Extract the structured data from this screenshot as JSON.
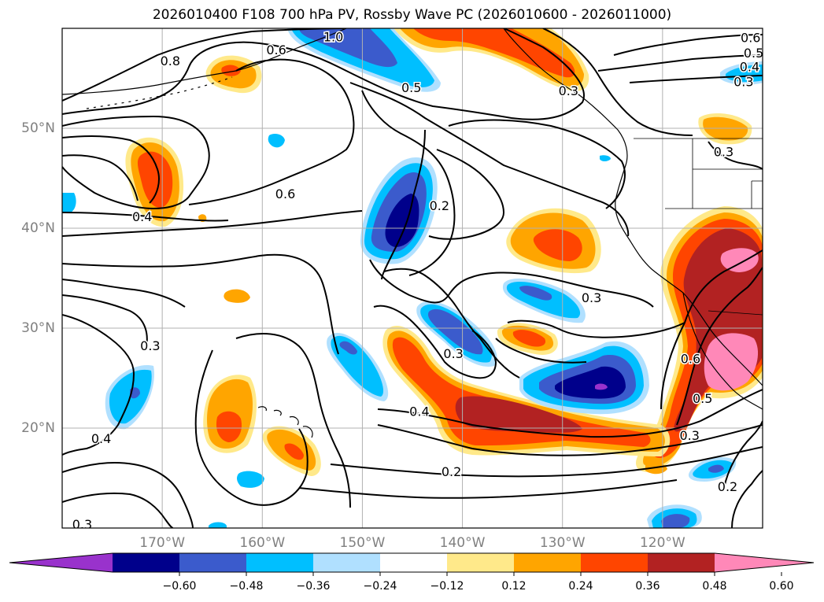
{
  "title": "2026010400 F108 700 hPa PV, Rossby Wave PC (2026010600 - 2026011000)",
  "latitude_labels": [
    {
      "label": "50°N",
      "lat": 50
    },
    {
      "label": "40°N",
      "lat": 40
    },
    {
      "label": "30°N",
      "lat": 30
    },
    {
      "label": "20°N",
      "lat": 20
    }
  ],
  "longitude_labels": [
    {
      "label": "170°W",
      "lon": -170
    },
    {
      "label": "160°W",
      "lon": -160
    },
    {
      "label": "150°W",
      "lon": -150
    },
    {
      "label": "140°W",
      "lon": -140
    },
    {
      "label": "130°W",
      "lon": -130
    },
    {
      "label": "120°W",
      "lon": -120
    }
  ],
  "map_extent": {
    "lon_min": -180,
    "lon_max": -110,
    "lat_min": 10,
    "lat_max": 60
  },
  "colorbar": {
    "extend": "both",
    "colors": [
      "#9932cc",
      "#00008b",
      "#3b5bcc",
      "#00bfff",
      "#b0e0ff",
      "#ffffff",
      "#ffe98a",
      "#ffa500",
      "#ff4500",
      "#b22222",
      "#ff88b8"
    ],
    "ticks": [
      "−0.60",
      "−0.48",
      "−0.36",
      "−0.24",
      "−0.12",
      "0.12",
      "0.24",
      "0.36",
      "0.48",
      "0.60"
    ]
  },
  "contour_labels": [
    {
      "text": "1.0",
      "lon": -152.9,
      "lat": 59.1
    },
    {
      "text": "0.6",
      "lon": -158.6,
      "lat": 57.8
    },
    {
      "text": "0.8",
      "lon": -169.2,
      "lat": 56.7
    },
    {
      "text": "0.6",
      "lon": -111.2,
      "lat": 59.0
    },
    {
      "text": "0.5",
      "lon": -110.9,
      "lat": 57.5
    },
    {
      "text": "0.4",
      "lon": -111.3,
      "lat": 56.1
    },
    {
      "text": "0.3",
      "lon": -111.9,
      "lat": 54.6
    },
    {
      "text": "0.5",
      "lon": -145.1,
      "lat": 54.0
    },
    {
      "text": "0.3",
      "lon": -129.4,
      "lat": 53.7
    },
    {
      "text": "0.6",
      "lon": -157.7,
      "lat": 43.4
    },
    {
      "text": "0.2",
      "lon": -142.3,
      "lat": 42.2
    },
    {
      "text": "0.4",
      "lon": -172.0,
      "lat": 41.1
    },
    {
      "text": "0.3",
      "lon": -113.9,
      "lat": 47.6
    },
    {
      "text": "0.3",
      "lon": -127.1,
      "lat": 33.0
    },
    {
      "text": "0.3",
      "lon": -171.2,
      "lat": 28.2
    },
    {
      "text": "0.3",
      "lon": -140.9,
      "lat": 27.4
    },
    {
      "text": "0.4",
      "lon": -144.3,
      "lat": 21.6
    },
    {
      "text": "0.6",
      "lon": -117.2,
      "lat": 26.9
    },
    {
      "text": "0.5",
      "lon": -116.0,
      "lat": 22.9
    },
    {
      "text": "0.4",
      "lon": -176.1,
      "lat": 18.9
    },
    {
      "text": "0.3",
      "lon": -117.3,
      "lat": 19.2
    },
    {
      "text": "0.2",
      "lon": -141.1,
      "lat": 15.6
    },
    {
      "text": "0.2",
      "lon": -113.5,
      "lat": 14.1
    },
    {
      "text": "0.3",
      "lon": -178.0,
      "lat": 10.3
    }
  ]
}
